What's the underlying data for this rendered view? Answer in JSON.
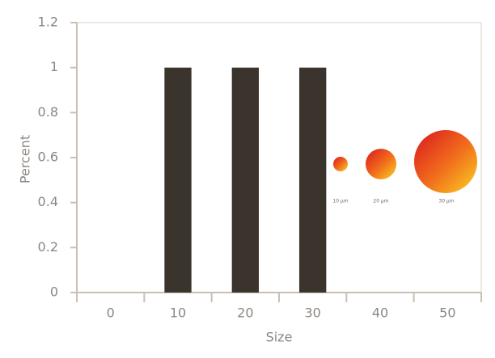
{
  "chart_data": {
    "type": "bar",
    "x_label": "Size",
    "y_label": "Percent",
    "categories": [
      "0",
      "10",
      "20",
      "30",
      "40",
      "50"
    ],
    "values": [
      0,
      1,
      1,
      1,
      0,
      0
    ],
    "color": "#3b342d",
    "ylim": [
      0,
      1.2
    ],
    "yticks": [
      0,
      0.2,
      0.4,
      0.6,
      0.8,
      1,
      1.2
    ],
    "grid": false,
    "annotations": [
      "10 µm",
      "20 µm",
      "30 µm"
    ]
  }
}
